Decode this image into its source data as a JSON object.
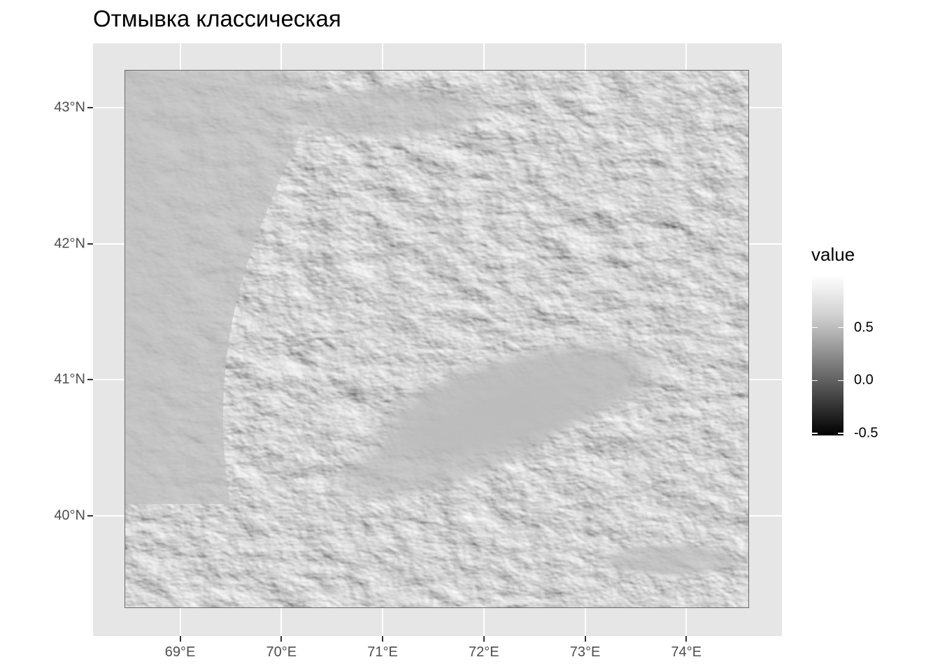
{
  "title": "Отмывка классическая",
  "chart_data": {
    "type": "heatmap",
    "title": "Отмывка классическая",
    "description_of_values": "hillshade raster, grayscale",
    "x_ticks": [
      "69°E",
      "70°E",
      "71°E",
      "72°E",
      "73°E",
      "74°E"
    ],
    "x_values": [
      69,
      70,
      71,
      72,
      73,
      74
    ],
    "y_ticks": [
      "43°N",
      "42°N",
      "41°N",
      "40°N"
    ],
    "y_values": [
      43,
      42,
      41,
      40
    ],
    "xlim": [
      68.45,
      74.62
    ],
    "ylim": [
      39.32,
      43.28
    ],
    "legend": {
      "title": "value",
      "ticks": [
        "0.5",
        "0.0",
        "-0.5"
      ],
      "tick_values": [
        0.5,
        0.0,
        -0.5
      ],
      "range": [
        -0.52,
        1.0
      ],
      "placement": "right",
      "colormap": "grayscale"
    },
    "grid": true
  }
}
